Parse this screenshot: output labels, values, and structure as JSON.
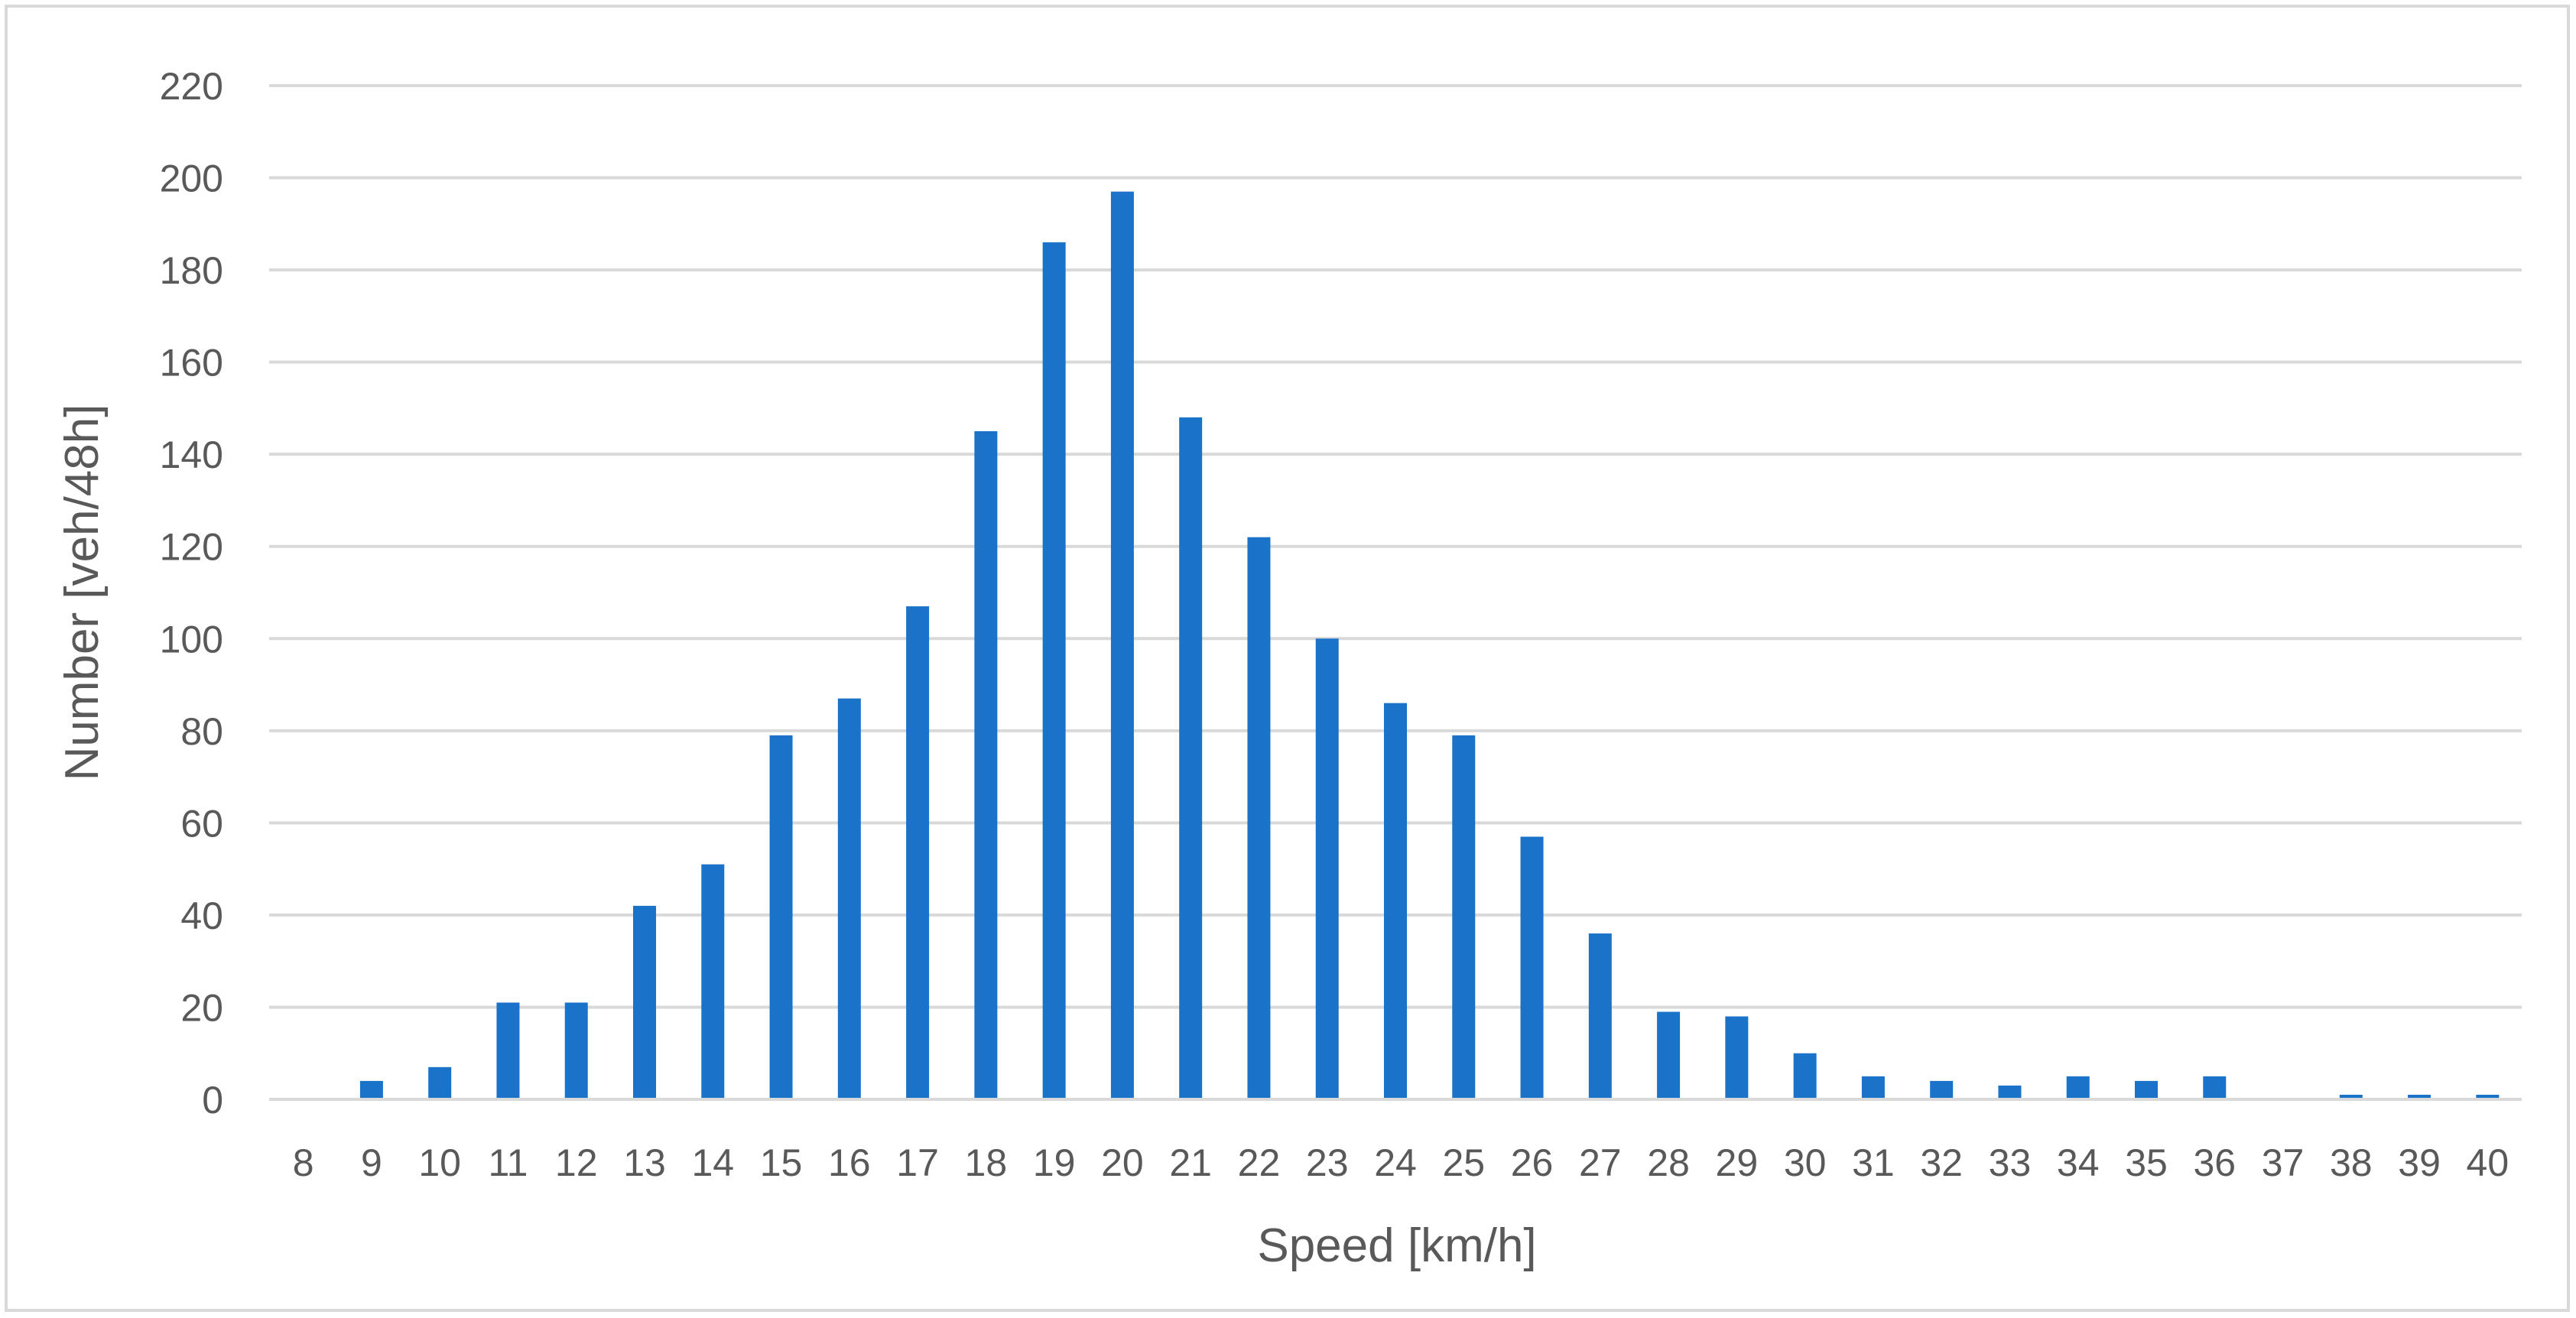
{
  "chart_data": {
    "type": "bar",
    "title": "",
    "xlabel": "Speed [km/h]",
    "ylabel": "Number [veh/48h]",
    "ylim": [
      0,
      220
    ],
    "y_ticks": [
      0,
      20,
      40,
      60,
      80,
      100,
      120,
      140,
      160,
      180,
      200,
      220
    ],
    "grid": true,
    "legend": "none",
    "bar_color": "#1a73c8",
    "grid_color": "#d9d9d9",
    "categories": [
      "8",
      "9",
      "10",
      "11",
      "12",
      "13",
      "14",
      "15",
      "16",
      "17",
      "18",
      "19",
      "20",
      "21",
      "22",
      "23",
      "24",
      "25",
      "26",
      "27",
      "28",
      "29",
      "30",
      "31",
      "32",
      "33",
      "34",
      "35",
      "36",
      "37",
      "38",
      "39",
      "40"
    ],
    "values": [
      0,
      4,
      7,
      21,
      21,
      42,
      51,
      79,
      87,
      107,
      145,
      186,
      197,
      148,
      122,
      100,
      86,
      79,
      57,
      36,
      19,
      18,
      10,
      5,
      4,
      3,
      5,
      4,
      5,
      0,
      1,
      1,
      1
    ]
  }
}
